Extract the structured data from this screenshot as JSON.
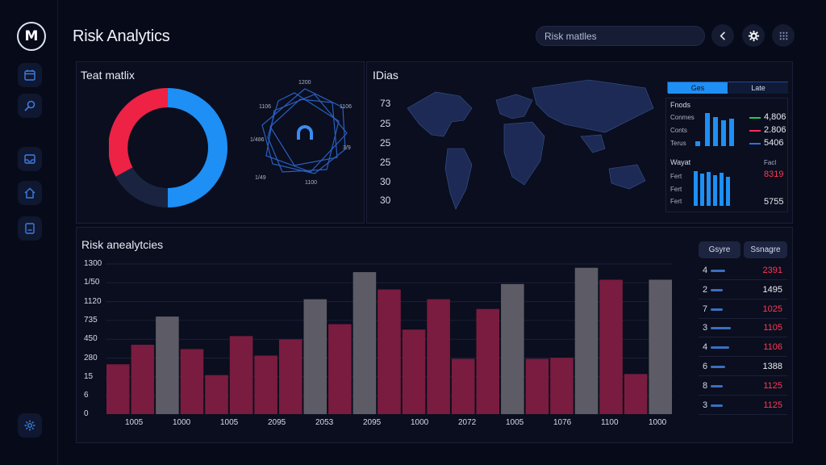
{
  "app": {
    "logo_text": "M",
    "title": "Risk Analytics"
  },
  "header": {
    "search_value": "Risk matlles"
  },
  "heat_panel": {
    "title": "Teat matlix"
  },
  "radar_labels": [
    "1200",
    "1106",
    "3/9",
    "1100",
    "1/49",
    "1/486",
    "1106"
  ],
  "map_panel": {
    "title": "IDias",
    "values": [
      "73",
      "25",
      "25",
      "25",
      "30",
      "30"
    ]
  },
  "mini_widget": {
    "tabs": [
      "Ges",
      "Late"
    ],
    "top_label": "Fnods",
    "top_rows": [
      "Conmes",
      "Conts",
      "Terus"
    ],
    "top_values": [
      {
        "value": "4,806",
        "color": "#1ec95b"
      },
      {
        "value": "2.806",
        "color": "#ff2e5a"
      },
      {
        "value": "5406",
        "color": "#2f6fe0"
      }
    ],
    "bottom_label": "Wayat",
    "bottom_rows": [
      "Fert",
      "Fert",
      "Fert"
    ],
    "bottom_small": "Facl",
    "bottom_values": [
      {
        "value": "8319",
        "color": "#ff3855"
      },
      {
        "value": "5755",
        "color": "#e9ecf4"
      }
    ]
  },
  "analytics": {
    "title": "Risk anealytcies",
    "buttons": [
      "Gsyre",
      "Ssnagre"
    ],
    "y_ticks": [
      "1300",
      "1/50",
      "1120",
      "735",
      "450",
      "280",
      "15",
      "6",
      "0"
    ],
    "x_labels": [
      "1005",
      "1000",
      "1005",
      "2095",
      "2053",
      "2095",
      "1000",
      "2072",
      "1005",
      "1076",
      "1100",
      "1000"
    ]
  },
  "chart_data": {
    "type": "bar",
    "series_colors": {
      "crimson": "#7a1c3f",
      "gray": "#5d5c66"
    },
    "bars": [
      {
        "value": 460,
        "series": "crimson"
      },
      {
        "value": 640,
        "series": "crimson"
      },
      {
        "value": 900,
        "series": "gray"
      },
      {
        "value": 600,
        "series": "crimson"
      },
      {
        "value": 360,
        "series": "crimson"
      },
      {
        "value": 720,
        "series": "crimson"
      },
      {
        "value": 540,
        "series": "crimson"
      },
      {
        "value": 690,
        "series": "crimson"
      },
      {
        "value": 1060,
        "series": "gray"
      },
      {
        "value": 830,
        "series": "crimson"
      },
      {
        "value": 1310,
        "series": "gray"
      },
      {
        "value": 1150,
        "series": "crimson"
      },
      {
        "value": 780,
        "series": "crimson"
      },
      {
        "value": 1060,
        "series": "crimson"
      },
      {
        "value": 510,
        "series": "crimson"
      },
      {
        "value": 970,
        "series": "crimson"
      },
      {
        "value": 1200,
        "series": "gray"
      },
      {
        "value": 510,
        "series": "crimson"
      },
      {
        "value": 520,
        "series": "crimson"
      },
      {
        "value": 1350,
        "series": "gray"
      },
      {
        "value": 1240,
        "series": "crimson"
      },
      {
        "value": 370,
        "series": "crimson"
      },
      {
        "value": 1240,
        "series": "gray"
      }
    ],
    "ylim": [
      0,
      1400
    ]
  },
  "risk_list": [
    {
      "idx": "4",
      "bar": 0.35,
      "value": "2391",
      "color": "#ff3855"
    },
    {
      "idx": "2",
      "bar": 0.3,
      "value": "1495",
      "color": "#e9ecf4"
    },
    {
      "idx": "7",
      "bar": 0.3,
      "value": "1025",
      "color": "#ff3855"
    },
    {
      "idx": "3",
      "bar": 0.5,
      "value": "1105",
      "color": "#ff3855"
    },
    {
      "idx": "4",
      "bar": 0.45,
      "value": "1106",
      "color": "#ff3855"
    },
    {
      "idx": "6",
      "bar": 0.35,
      "value": "1388",
      "color": "#e9ecf4"
    },
    {
      "idx": "8",
      "bar": 0.3,
      "value": "1125",
      "color": "#ff3855"
    },
    {
      "idx": "3",
      "bar": 0.3,
      "value": "1125",
      "color": "#ff3855"
    }
  ],
  "icons": {
    "sidebar": [
      "calendar-icon",
      "search-icon",
      "inbox-icon",
      "home-icon",
      "document-icon",
      "settings-icon"
    ],
    "header": [
      "chevron-left-icon",
      "gear-icon",
      "grid-icon"
    ]
  }
}
